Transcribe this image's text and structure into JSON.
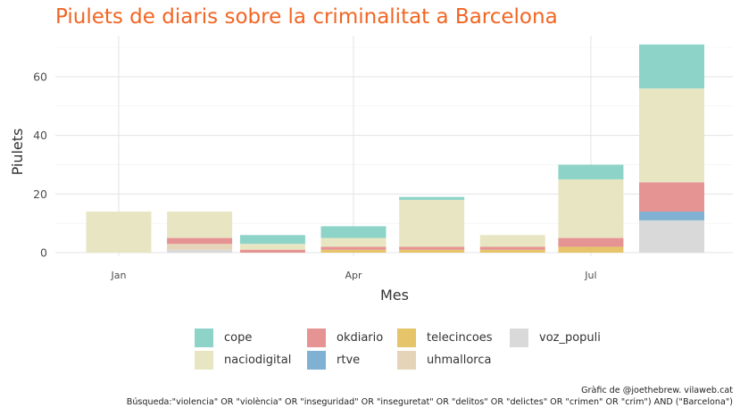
{
  "chart_data": {
    "type": "bar",
    "stacked": true,
    "title": "Piulets de diaris sobre la criminalitat a Barcelona",
    "xlabel": "Mes",
    "ylabel": "Piulets",
    "x_tick_labels": [
      "Jan",
      "Apr",
      "Jul"
    ],
    "y_ticks": [
      0,
      20,
      40,
      60
    ],
    "ylim": [
      0,
      74
    ],
    "grid": true,
    "legend_position": "bottom",
    "categories": [
      "2019-01",
      "2019-02",
      "2019-03",
      "2019-04",
      "2019-05",
      "2019-06",
      "2019-07",
      "2019-08"
    ],
    "series": [
      {
        "name": "voz_populi",
        "color": "#d9d9d9",
        "values": [
          0,
          1,
          0,
          0,
          0,
          0,
          0,
          11
        ]
      },
      {
        "name": "uhmallorca",
        "color": "#e5d4b8",
        "values": [
          0,
          2,
          0,
          0,
          0,
          0,
          0,
          0
        ]
      },
      {
        "name": "telecincoes",
        "color": "#e5c46a",
        "values": [
          0,
          0,
          0,
          1,
          1,
          1,
          2,
          0
        ]
      },
      {
        "name": "rtve",
        "color": "#80b1d3",
        "values": [
          0,
          0,
          0,
          0,
          0,
          0,
          0,
          3
        ]
      },
      {
        "name": "okdiario",
        "color": "#e69394",
        "values": [
          0,
          2,
          1,
          1,
          1,
          1,
          3,
          10
        ]
      },
      {
        "name": "naciodigital",
        "color": "#e8e6c2",
        "values": [
          14,
          9,
          2,
          3,
          16,
          4,
          20,
          32
        ]
      },
      {
        "name": "cope",
        "color": "#8dd3c7",
        "values": [
          0,
          0,
          3,
          4,
          1,
          0,
          5,
          15
        ]
      }
    ],
    "caption_lines": [
      "Gràfic de @joethebrew. vilaweb.cat",
      "Búsqueda:\"violencia\" OR \"violència\" OR \"inseguridad\" OR \"inseguretat\" OR \"delitos\" OR \"delictes\" OR \"crimen\" OR \"crim\") AND (\"Barcelona\")"
    ]
  },
  "legend": [
    {
      "name": "cope",
      "color": "#8dd3c7"
    },
    {
      "name": "okdiario",
      "color": "#e69394"
    },
    {
      "name": "telecincoes",
      "color": "#e5c46a"
    },
    {
      "name": "voz_populi",
      "color": "#d9d9d9"
    },
    {
      "name": "naciodigital",
      "color": "#e8e6c2"
    },
    {
      "name": "rtve",
      "color": "#80b1d3"
    },
    {
      "name": "uhmallorca",
      "color": "#e5d4b8"
    }
  ]
}
